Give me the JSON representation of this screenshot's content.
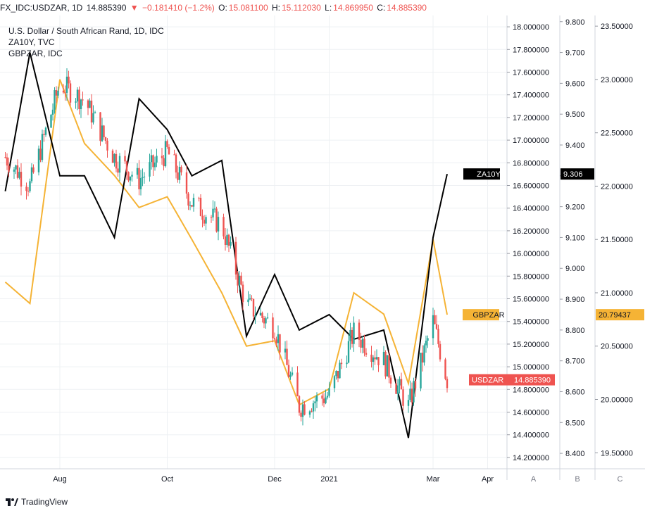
{
  "header": {
    "symbol": "FX_IDC:USDZAR, 1D",
    "last": "14.885390",
    "change_arrow": "▼",
    "change": "−0.181410 (−1.2%)",
    "o_label": "O:",
    "o_val": "15.081100",
    "h_label": "H:",
    "h_val": "15.112030",
    "l_label": "L:",
    "l_val": "14.869950",
    "c_label": "C:",
    "c_val": "14.885390"
  },
  "legend": {
    "title": "U.S. Dollar / South African Rand, 1D, IDC",
    "line2": "ZA10Y, TVC",
    "line3": "GBPZAR, IDC"
  },
  "scales": {
    "A": {
      "label": "A",
      "ticks": [
        "18.000000",
        "17.800000",
        "17.600000",
        "17.400000",
        "17.200000",
        "17.000000",
        "16.800000",
        "16.600000",
        "16.400000",
        "16.200000",
        "16.000000",
        "15.800000",
        "15.600000",
        "15.400000",
        "15.200000",
        "15.000000",
        "14.800000",
        "14.600000",
        "14.400000",
        "14.200000"
      ]
    },
    "B": {
      "label": "B",
      "ticks": [
        "9.800",
        "9.700",
        "9.600",
        "9.500",
        "9.400",
        "9.300",
        "9.200",
        "9.100",
        "9.000",
        "8.900",
        "8.800",
        "8.700",
        "8.600",
        "8.500",
        "8.400"
      ]
    },
    "C": {
      "label": "C",
      "ticks": [
        "23.50000",
        "23.00000",
        "22.50000",
        "22.00000",
        "21.50000",
        "21.00000",
        "20.50000",
        "20.00000",
        "19.50000"
      ]
    }
  },
  "x_ticks": [
    "Aug",
    "Oct",
    "Dec",
    "2021",
    "Mar",
    "Apr"
  ],
  "tags": {
    "za10y_name": "ZA10Y",
    "za10y_value": "9.306",
    "gbpzar_name": "GBPZAR",
    "gbpzar_value": "20.79437",
    "usdzar_name": "USDZAR",
    "usdzar_value": "14.885390"
  },
  "colors": {
    "up": "#26a69a",
    "down": "#ef5350",
    "za10y": "#000000",
    "gbpzar": "#f5b335",
    "grid": "#eef0f3",
    "text": "#131722"
  },
  "footer": {
    "brand": "TradingView"
  },
  "chart_data": {
    "type": "line",
    "title": "U.S. Dollar / South African Rand, 1D, IDC",
    "x": [
      "2020-07-01",
      "2020-07-15",
      "2020-08-01",
      "2020-08-15",
      "2020-09-01",
      "2020-09-15",
      "2020-10-01",
      "2020-10-15",
      "2020-11-01",
      "2020-11-15",
      "2020-12-01",
      "2020-12-15",
      "2021-01-01",
      "2021-01-15",
      "2021-02-01",
      "2021-02-15",
      "2021-03-01",
      "2021-03-09"
    ],
    "series": [
      {
        "name": "USDZAR",
        "axis": "A",
        "values": [
          16.85,
          16.6,
          17.5,
          17.35,
          16.85,
          16.65,
          16.9,
          16.45,
          16.25,
          15.55,
          15.35,
          14.65,
          14.75,
          15.3,
          15.05,
          14.65,
          15.4,
          14.88539
        ]
      },
      {
        "name": "ZA10Y",
        "axis": "B",
        "values": [
          9.25,
          9.7,
          9.3,
          9.3,
          9.1,
          9.55,
          9.45,
          9.3,
          9.35,
          8.78,
          8.98,
          8.8,
          8.85,
          8.77,
          8.8,
          8.45,
          9.1,
          9.306
        ]
      },
      {
        "name": "GBPZAR",
        "axis": "C",
        "values": [
          21.1,
          20.9,
          23.0,
          22.4,
          22.1,
          21.8,
          21.9,
          21.5,
          21.0,
          20.5,
          20.55,
          19.95,
          20.1,
          21.0,
          20.8,
          20.15,
          21.5,
          20.79437
        ]
      }
    ],
    "axes": {
      "A": {
        "ylim": [
          14.1,
          18.1
        ]
      },
      "B": {
        "ylim": [
          8.35,
          9.82
        ]
      },
      "C": {
        "ylim": [
          19.35,
          23.6
        ]
      }
    },
    "grid": true,
    "last_values": {
      "USDZAR": 14.88539,
      "ZA10Y": 9.306,
      "GBPZAR": 20.79437
    }
  }
}
